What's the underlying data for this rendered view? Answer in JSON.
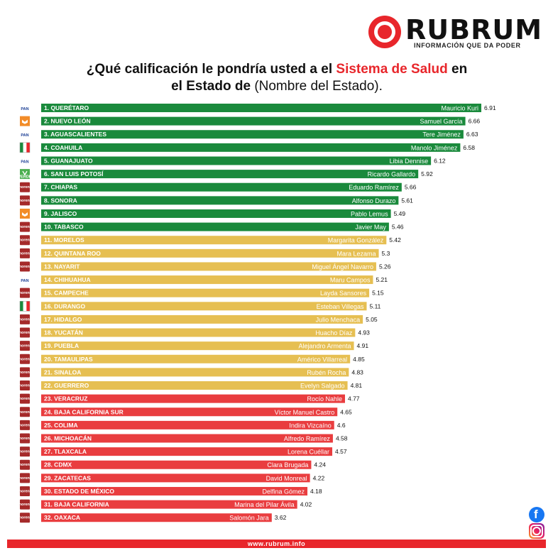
{
  "brand": {
    "name": "RUBRUM",
    "tagline": "INFORMACIÓN QUE DA PODER",
    "footer_url": "www.rubrum.info"
  },
  "title": {
    "part1": "¿Qué calificación le pondría usted a el ",
    "highlight": "Sistema de Salud",
    "part2": " en",
    "part3": "el Estado de ",
    "part4": "(Nombre del Estado)."
  },
  "colors": {
    "green": "#1a8a3c",
    "yellow": "#e6bf52",
    "red": "#e93d3f",
    "brand_red": "#e8262b"
  },
  "chart_data": {
    "type": "bar",
    "orientation": "horizontal",
    "categories": [
      "1. QUERÉTARO",
      "2. NUEVO LEÓN",
      "3. AGUASCALIENTES",
      "4. COAHUILA",
      "5. GUANAJUATO",
      "6. SAN LUIS POTOSÍ",
      "7. CHIAPAS",
      "8. SONORA",
      "9. JALISCO",
      "10. TABASCO",
      "11. MORELOS",
      "12. QUINTANA ROO",
      "13. NAYARIT",
      "14. CHIHUAHUA",
      "15. CAMPECHE",
      "16. DURANGO",
      "17. HIDALGO",
      "18. YUCATÁN",
      "19. PUEBLA",
      "20. TAMAULIPAS",
      "21. SINALOA",
      "22. GUERRERO",
      "23. VERACRUZ",
      "24. BAJA CALIFORNIA SUR",
      "25. COLIMA",
      "26. MICHOACÁN",
      "27. TLAXCALA",
      "28. CDMX",
      "29. ZACATECAS",
      "30. ESTADO DE MÉXICO",
      "31. BAJA CALIFORNIA",
      "32. OAXACA"
    ],
    "governors": [
      "Mauricio Kuri",
      "Samuel García",
      "Tere Jiménez",
      "Manolo Jiménez",
      "Libia Dennise",
      "Ricardo Gallardo",
      "Eduardo Ramírez",
      "Alfonso Durazo",
      "Pablo Lemus",
      "Javier May",
      "Margarita González",
      "Mara Lezama",
      "Miguel Ángel Navarro",
      "Maru Campos",
      "Layda Sansores",
      "Esteban Villegas",
      "Julio Menchaca",
      "Huacho Díaz",
      "Alejandro Armenta",
      "Américo Villarreal",
      "Rubén Rocha",
      "Evelyn Salgado",
      "Rocío Nahle",
      "Víctor Manuel Castro",
      "Indira Vizcaíno",
      "Alfredo Ramírez",
      "Lorena Cuéllar",
      "Clara Brugada",
      "David Monreal",
      "Delfina Gómez",
      "Marina del Pilar Ávila",
      "Salomón Jara"
    ],
    "values": [
      6.91,
      6.66,
      6.63,
      6.58,
      6.12,
      5.92,
      5.66,
      5.61,
      5.49,
      5.46,
      5.42,
      5.3,
      5.26,
      5.21,
      5.15,
      5.11,
      5.05,
      4.93,
      4.91,
      4.85,
      4.83,
      4.81,
      4.77,
      4.65,
      4.6,
      4.58,
      4.57,
      4.24,
      4.22,
      4.18,
      4.02,
      3.62
    ],
    "value_labels": [
      "6.91",
      "6.66",
      "6.63",
      "6.58",
      "6.12",
      "5.92",
      "5.66",
      "5.61",
      "5.49",
      "5.46",
      "5.42",
      "5.3",
      "5.26",
      "5.21",
      "5.15",
      "5.11",
      "5.05",
      "4.93",
      "4.91",
      "4.85",
      "4.83",
      "4.81",
      "4.77",
      "4.65",
      "4.6",
      "4.58",
      "4.57",
      "4.24",
      "4.22",
      "4.18",
      "4.02",
      "3.62"
    ],
    "color_groups": [
      "green",
      "green",
      "green",
      "green",
      "green",
      "green",
      "green",
      "green",
      "green",
      "green",
      "yellow",
      "yellow",
      "yellow",
      "yellow",
      "yellow",
      "yellow",
      "yellow",
      "yellow",
      "yellow",
      "yellow",
      "yellow",
      "yellow",
      "red",
      "red",
      "red",
      "red",
      "red",
      "red",
      "red",
      "red",
      "red",
      "red"
    ],
    "parties": [
      "pan",
      "mc",
      "pan",
      "pri",
      "pan",
      "pvem",
      "morena",
      "morena",
      "mc",
      "morena",
      "morena",
      "morena",
      "morena",
      "pan",
      "morena",
      "pri",
      "morena",
      "morena",
      "morena",
      "morena",
      "morena",
      "morena",
      "morena",
      "morena",
      "morena",
      "morena",
      "morena",
      "morena",
      "morena",
      "morena",
      "morena",
      "morena"
    ],
    "party_labels": {
      "pan": "PAN",
      "pri": "PRI",
      "pvem": "VERDE",
      "mc": "",
      "morena": "morena"
    },
    "xlim": [
      0,
      6.91
    ]
  }
}
